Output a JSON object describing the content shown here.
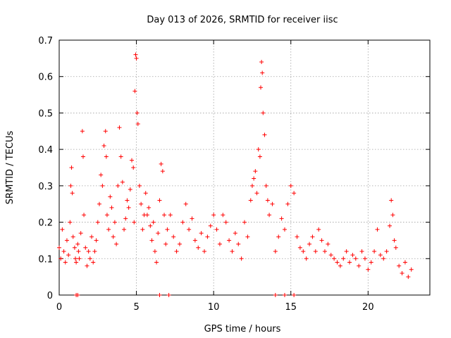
{
  "chart_data": {
    "type": "scatter",
    "title": "Day 013 of 2026, SRMTID for receiver iisc",
    "xlabel": "GPS time / hours",
    "ylabel": "SRMTID / TECUs",
    "xlim": [
      0,
      24
    ],
    "ylim": [
      0,
      0.7
    ],
    "xticks": [
      0,
      5,
      10,
      15,
      20
    ],
    "yticks": [
      0,
      0.1,
      0.2,
      0.3,
      0.4,
      0.5,
      0.6,
      0.7
    ],
    "xtick_labels": [
      "0",
      "5",
      "10",
      "15",
      "20"
    ],
    "ytick_labels": [
      "0",
      "0.1",
      "0.2",
      "0.3",
      "0.4",
      "0.5",
      "0.6",
      "0.7"
    ],
    "grid": true,
    "marker": "+",
    "color": "#ff0000",
    "series": [
      {
        "name": "SRMTID",
        "x": [
          0.0,
          0.1,
          0.2,
          0.3,
          0.4,
          0.5,
          0.6,
          0.7,
          0.75,
          0.8,
          0.85,
          0.9,
          1.0,
          1.05,
          1.1,
          1.2,
          1.25,
          1.3,
          1.4,
          1.5,
          1.55,
          1.6,
          1.7,
          1.8,
          1.9,
          2.0,
          2.1,
          2.2,
          2.3,
          2.4,
          2.5,
          2.6,
          2.7,
          2.8,
          2.9,
          3.0,
          3.05,
          3.1,
          3.2,
          3.3,
          3.4,
          3.5,
          3.6,
          3.7,
          3.8,
          3.9,
          4.0,
          4.1,
          4.2,
          4.3,
          4.4,
          4.5,
          4.6,
          4.7,
          4.8,
          4.85,
          4.9,
          4.95,
          5.0,
          5.05,
          5.1,
          5.2,
          5.3,
          5.4,
          5.5,
          5.6,
          5.7,
          5.8,
          5.9,
          6.0,
          6.1,
          6.2,
          6.3,
          6.4,
          6.5,
          6.6,
          6.7,
          6.8,
          6.9,
          7.0,
          7.2,
          7.4,
          7.6,
          7.8,
          8.0,
          8.2,
          8.4,
          8.6,
          8.8,
          9.0,
          9.2,
          9.4,
          9.6,
          9.8,
          10.0,
          10.2,
          10.4,
          10.6,
          10.8,
          11.0,
          11.2,
          11.4,
          11.6,
          11.8,
          12.0,
          12.2,
          12.4,
          12.5,
          12.6,
          12.7,
          12.8,
          12.9,
          13.0,
          13.05,
          13.1,
          13.15,
          13.2,
          13.3,
          13.4,
          13.5,
          13.6,
          13.8,
          14.0,
          14.2,
          14.4,
          14.6,
          14.8,
          15.0,
          15.2,
          15.4,
          15.6,
          15.8,
          16.0,
          16.2,
          16.4,
          16.6,
          16.8,
          17.0,
          17.2,
          17.4,
          17.6,
          17.8,
          18.0,
          18.2,
          18.4,
          18.6,
          18.8,
          19.0,
          19.2,
          19.4,
          19.6,
          19.8,
          20.0,
          20.2,
          20.4,
          20.6,
          20.8,
          21.0,
          21.2,
          21.4,
          21.5,
          21.6,
          21.7,
          21.8,
          22.0,
          22.2,
          22.4,
          22.6,
          22.8,
          1.1,
          1.2,
          6.5,
          7.1,
          14.0,
          14.6,
          15.2
        ],
        "y": [
          0.13,
          0.1,
          0.18,
          0.12,
          0.09,
          0.15,
          0.11,
          0.2,
          0.3,
          0.35,
          0.28,
          0.16,
          0.13,
          0.1,
          0.09,
          0.14,
          0.12,
          0.1,
          0.17,
          0.45,
          0.38,
          0.22,
          0.13,
          0.08,
          0.12,
          0.1,
          0.16,
          0.09,
          0.12,
          0.15,
          0.2,
          0.25,
          0.33,
          0.3,
          0.41,
          0.45,
          0.38,
          0.22,
          0.18,
          0.27,
          0.24,
          0.16,
          0.2,
          0.14,
          0.3,
          0.46,
          0.38,
          0.31,
          0.18,
          0.21,
          0.26,
          0.24,
          0.29,
          0.37,
          0.35,
          0.2,
          0.56,
          0.66,
          0.65,
          0.5,
          0.47,
          0.3,
          0.25,
          0.18,
          0.22,
          0.28,
          0.22,
          0.24,
          0.19,
          0.15,
          0.2,
          0.12,
          0.09,
          0.17,
          0.26,
          0.36,
          0.34,
          0.22,
          0.14,
          0.18,
          0.22,
          0.16,
          0.12,
          0.14,
          0.2,
          0.25,
          0.18,
          0.21,
          0.15,
          0.13,
          0.17,
          0.12,
          0.16,
          0.19,
          0.22,
          0.18,
          0.14,
          0.22,
          0.2,
          0.15,
          0.12,
          0.17,
          0.14,
          0.1,
          0.2,
          0.16,
          0.26,
          0.3,
          0.32,
          0.34,
          0.28,
          0.4,
          0.38,
          0.57,
          0.64,
          0.61,
          0.5,
          0.44,
          0.3,
          0.26,
          0.22,
          0.25,
          0.12,
          0.16,
          0.21,
          0.18,
          0.25,
          0.3,
          0.28,
          0.16,
          0.13,
          0.12,
          0.1,
          0.14,
          0.16,
          0.12,
          0.18,
          0.15,
          0.12,
          0.14,
          0.11,
          0.1,
          0.09,
          0.08,
          0.1,
          0.12,
          0.09,
          0.11,
          0.1,
          0.08,
          0.12,
          0.1,
          0.07,
          0.09,
          0.12,
          0.18,
          0.11,
          0.1,
          0.12,
          0.19,
          0.26,
          0.22,
          0.15,
          0.13,
          0.08,
          0.06,
          0.09,
          0.05,
          0.07,
          0.0,
          0.0,
          0.0,
          0.0,
          0.0,
          0.0,
          0.0
        ]
      }
    ]
  }
}
